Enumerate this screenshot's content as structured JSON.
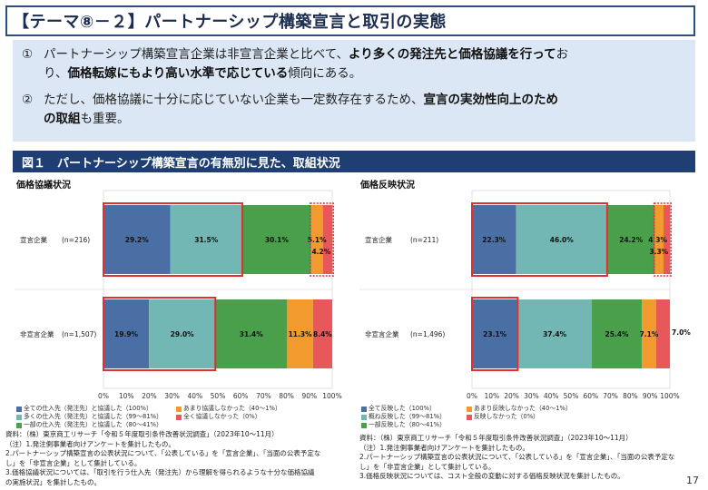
{
  "page_title": "【テーマ⑧－２】パートナーシップ構築宣言と取引の実態",
  "summary": {
    "p1": {
      "num": "①",
      "t1": "パートナーシップ構築宣言企業は非宣言企業と比べて、",
      "b1": "より多くの発注先と価格協議を行って",
      "t2": "お",
      "t3": "り、",
      "b2": "価格転嫁にもより高い水準で応じている",
      "t4": "傾向にある。"
    },
    "p2": {
      "num": "②",
      "t1": "ただし、価格協議に十分に応じていない企業も一定数存在するため、",
      "b1": "宣言の実効性向上のため",
      "b2": "の取組",
      "t2": "も重要。"
    }
  },
  "figure_title": "図１　パートナーシップ構築宣言の有無別に見た、取組状況",
  "page_number": "17",
  "colors": {
    "title_border": "#2b4f82",
    "summary_bg": "#dbe7f4",
    "header_bg": "#1f3f72",
    "highlight": "#e03030"
  },
  "chart_data": [
    {
      "type": "bar",
      "orientation": "horizontal-stacked-100",
      "title": "価格協議状況",
      "categories": [
        "宣言企業",
        "非宣言企業"
      ],
      "n_labels": [
        "(n=216)",
        "(n=1,507)"
      ],
      "series": [
        {
          "name": "全ての仕入先（発注先）と協議した（100%）",
          "color": "#4a6fa5",
          "values": [
            29.2,
            19.9
          ]
        },
        {
          "name": "多くの仕入先（発注先）と協議した（99～81%）",
          "color": "#72b7b4",
          "values": [
            31.5,
            29.0
          ]
        },
        {
          "name": "一部の仕入先（発注先）と協議した（80～41%）",
          "color": "#4aa04a",
          "values": [
            30.1,
            31.4
          ]
        },
        {
          "name": "あまり協議しなかった（40～1%）",
          "color": "#f39a2e",
          "values": [
            5.1,
            11.3
          ]
        },
        {
          "name": "全く協議しなかった（0%）",
          "color": "#e8585a",
          "values": [
            4.2,
            8.4
          ]
        }
      ],
      "value_labels": [
        [
          "29.2%",
          "31.5%",
          "30.1%",
          "5.1%",
          "4.2%"
        ],
        [
          "19.9%",
          "29.0%",
          "31.4%",
          "11.3%",
          "8.4%"
        ]
      ],
      "xlim": [
        0,
        100
      ],
      "xticks": [
        "0%",
        "10%",
        "20%",
        "30%",
        "40%",
        "50%",
        "60%",
        "70%",
        "80%",
        "90%",
        "100%"
      ],
      "legend": "bottom"
    },
    {
      "type": "bar",
      "orientation": "horizontal-stacked-100",
      "title": "価格反映状況",
      "categories": [
        "宣言企業",
        "非宣言企業"
      ],
      "n_labels": [
        "(n=211)",
        "(n=1,496)"
      ],
      "series": [
        {
          "name": "全て反映した（100%）",
          "color": "#4a6fa5",
          "values": [
            22.3,
            23.1
          ]
        },
        {
          "name": "概ね反映した（99～81%）",
          "color": "#72b7b4",
          "values": [
            46.0,
            37.4
          ]
        },
        {
          "name": "一部反映した（80～41%）",
          "color": "#4aa04a",
          "values": [
            24.2,
            25.4
          ]
        },
        {
          "name": "あまり反映しなかった（40～1%）",
          "color": "#f39a2e",
          "values": [
            4.3,
            7.1
          ]
        },
        {
          "name": "反映しなかった（0%）",
          "color": "#e8585a",
          "values": [
            3.3,
            7.0
          ]
        }
      ],
      "value_labels": [
        [
          "22.3%",
          "46.0%",
          "24.2%",
          "4.3%",
          "3.3%"
        ],
        [
          "23.1%",
          "37.4%",
          "25.4%",
          "7.1%",
          "7.0%"
        ]
      ],
      "xlim": [
        0,
        100
      ],
      "xticks": [
        "0%",
        "10%",
        "20%",
        "30%",
        "40%",
        "50%",
        "60%",
        "70%",
        "80%",
        "90%",
        "100%"
      ],
      "legend": "bottom"
    }
  ],
  "notes_left": [
    "資料：（株）東京商工リサーチ「令和５年度取引条件改善状況調査」（2023年10～11月）",
    "（注）1.発注側事業者向けアンケートを集計したもの。",
    "2.パートナーシップ構築宣言の公表状況について、「公表している」を「宣言企業」、「当面の公表予定な",
    "し」を「非宣言企業」として集計している。",
    "3.価格協議状況については、「取引を行う仕入先（発注先）から理解を得られるような十分な価格協議",
    "の実施状況」を集計したもの。"
  ],
  "notes_right": [
    "資料：（株）東京商工リサーチ「令和５年度取引条件改善状況調査」（2023年10～11月）",
    "（注）1.発注側事業者向けアンケートを集計したもの。",
    "2.パートナーシップ構築宣言の公表状況について、「公表している」を「宣言企業」、「当面の公表予定な",
    "し」を「非宣言企業」として集計している。",
    "3.価格反映状況については、コスト全般の変動に対する価格反映状況を集計したもの。"
  ]
}
